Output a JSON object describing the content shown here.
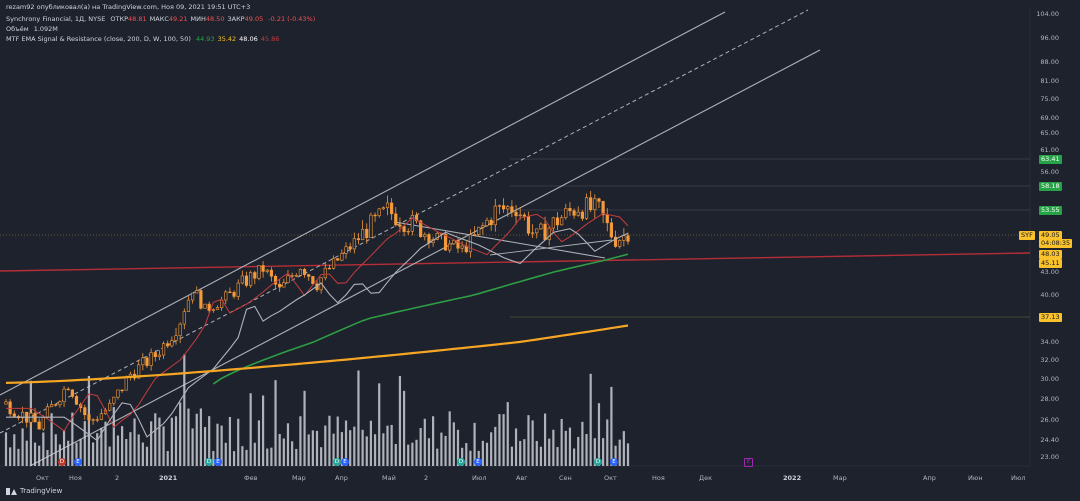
{
  "header": {
    "line1": "rezam92 опубликовал(а) на TradingView.com, Ноя 09, 2021 19:51 UTC+3",
    "line2_symbol": "Synchrony Financial, 1Д, NYSE",
    "line2_ohlc": [
      {
        "label": "ОТКР",
        "value": "48.81"
      },
      {
        "label": "МАКС",
        "value": "49.21"
      },
      {
        "label": "МИН",
        "value": "48.50"
      },
      {
        "label": "ЗАКР",
        "value": "49.05"
      }
    ],
    "line2_change": "-0.21 (-0.43%)",
    "line3_label": "Объём",
    "line3_value": "1.092M",
    "line4_label": "MTF EMA Signal & Resistance (close, 200, D, W, 100, 50)",
    "line4_values": [
      "44.93",
      "35.42",
      "48.06",
      "45.86"
    ]
  },
  "colors": {
    "background": "#1e222d",
    "candle": "#f59a3a",
    "ema_red": "#c43c3c",
    "ema_gray": "#b0b3bb",
    "ema_green": "#2e9d44",
    "ema_orange": "#f6a623",
    "resistance": "#b52e37",
    "channel": "#aeb1b8",
    "volume": "#cfd2d8",
    "tag_green": "#27a347",
    "tag_yellow": "#f9c22b"
  },
  "price_axis": {
    "labels": [
      "104.00",
      "96.00",
      "88.00",
      "81.00",
      "75.00",
      "69.00",
      "65.00",
      "61.00",
      "56.00",
      "43.00",
      "40.00",
      "36.00",
      "34.00",
      "32.00",
      "30.00",
      "28.00",
      "26.00",
      "24.40",
      "23.00"
    ],
    "tags": [
      {
        "text": "63.41",
        "kind": "green"
      },
      {
        "text": "58.18",
        "kind": "green"
      },
      {
        "text": "53.55",
        "kind": "green"
      },
      {
        "text": "SYF",
        "kind": "yellow"
      },
      {
        "text": "49.05",
        "kind": "yellow"
      },
      {
        "text": "04:08:35",
        "kind": "yellow"
      },
      {
        "text": "48.03",
        "kind": "yellow"
      },
      {
        "text": "45.11",
        "kind": "yellow"
      },
      {
        "text": "37.13",
        "kind": "yellow"
      }
    ]
  },
  "time_axis": {
    "labels": [
      "Окт",
      "Ноя",
      "2",
      "2021",
      "Фев",
      "Мар",
      "Апр",
      "Май",
      "2",
      "Июл",
      "Авг",
      "Сен",
      "Окт",
      "Ноя",
      "Дек",
      "2022",
      "Мар",
      "Апр",
      "Июн",
      "Июл",
      "2"
    ]
  },
  "events": [
    {
      "text": "D",
      "color": "#c0392b"
    },
    {
      "text": "E",
      "color": "#2962ff"
    },
    {
      "text": "D",
      "color": "#26a69a"
    },
    {
      "text": "E",
      "color": "#2962ff"
    },
    {
      "text": "D",
      "color": "#26a69a"
    },
    {
      "text": "E",
      "color": "#2962ff"
    },
    {
      "text": "D",
      "color": "#26a69a"
    },
    {
      "text": "E",
      "color": "#2962ff"
    },
    {
      "text": "D",
      "color": "#26a69a"
    },
    {
      "text": "E",
      "color": "#2962ff"
    },
    {
      "text": "E",
      "color": "#9c27b0"
    }
  ],
  "footer": {
    "brand": "TradingView"
  },
  "chart_data": {
    "type": "candlestick",
    "title": "Synchrony Financial, 1Д, NYSE",
    "x_range": [
      "Sep 2020",
      "Jul 2022"
    ],
    "ylim": [
      23,
      104
    ],
    "y_scale": "log",
    "last_price": 49.05,
    "grid": false,
    "resistance_levels": [
      63.41,
      58.18,
      53.55,
      37.13
    ],
    "ema_values": {
      "ema_red": 44.93,
      "ema_orange": 35.42,
      "ema_gray": 48.06,
      "ema_green": 45.86
    },
    "close_path": [
      {
        "t": 0,
        "p": 27.5
      },
      {
        "t": 8,
        "p": 25.5
      },
      {
        "t": 15,
        "p": 29.5
      },
      {
        "t": 20,
        "p": 25.8
      },
      {
        "t": 25,
        "p": 27.2
      },
      {
        "t": 30,
        "p": 30.5
      },
      {
        "t": 36,
        "p": 32.5
      },
      {
        "t": 42,
        "p": 36.0
      },
      {
        "t": 45,
        "p": 41.0
      },
      {
        "t": 48,
        "p": 37.5
      },
      {
        "t": 52,
        "p": 39.0
      },
      {
        "t": 57,
        "p": 41.5
      },
      {
        "t": 62,
        "p": 43.5
      },
      {
        "t": 66,
        "p": 40.5
      },
      {
        "t": 71,
        "p": 44.0
      },
      {
        "t": 75,
        "p": 41.5
      },
      {
        "t": 80,
        "p": 45.0
      },
      {
        "t": 86,
        "p": 49.0
      },
      {
        "t": 92,
        "p": 51.5
      },
      {
        "t": 100,
        "p": 49.5
      },
      {
        "t": 106,
        "p": 47.5
      },
      {
        "t": 110,
        "p": 46.5
      },
      {
        "t": 113,
        "p": 48.5
      },
      {
        "t": 118,
        "p": 51.5
      },
      {
        "t": 123,
        "p": 52.0
      },
      {
        "t": 128,
        "p": 48.5
      },
      {
        "t": 133,
        "p": 50.5
      },
      {
        "t": 138,
        "p": 52.0
      },
      {
        "t": 143,
        "p": 51.5
      },
      {
        "t": 147,
        "p": 48.0
      },
      {
        "t": 150,
        "p": 49.05
      }
    ]
  }
}
